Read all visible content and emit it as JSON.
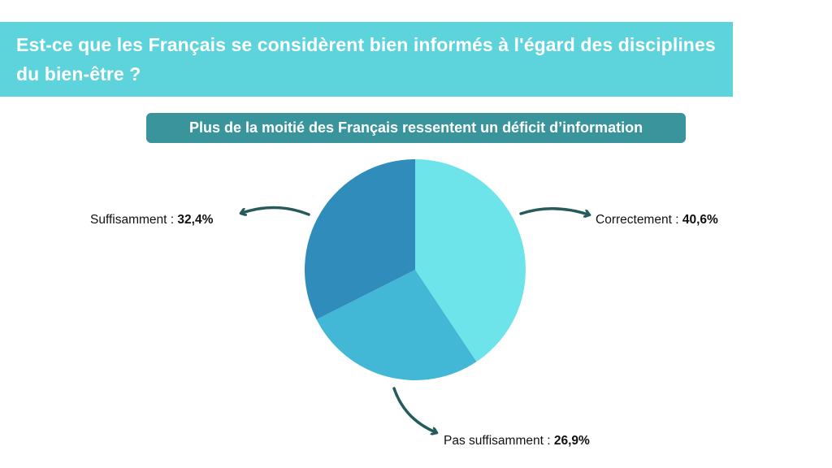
{
  "header": {
    "title": "Est-ce que les Français se considèrent bien informés à l'égard des disciplines du bien-être ?"
  },
  "subtitle": "Plus de la moitié des Français ressentent un déficit d’information",
  "chart_data": {
    "type": "pie",
    "categories": [
      "Correctement",
      "Pas suffisamment",
      "Suffisamment"
    ],
    "values": [
      40.6,
      26.9,
      32.4
    ],
    "labels": [
      {
        "name": "Correctement :",
        "value": "40,6%"
      },
      {
        "name": "Pas suffisamment :",
        "value": "26,9%"
      },
      {
        "name": "Suffisamment :",
        "value": "32,4%"
      }
    ],
    "colors": [
      "#6ce4ea",
      "#43b8d6",
      "#2f8cbb"
    ],
    "start": "12 o'clock, clockwise"
  },
  "colors": {
    "banner": "#5dd3dc",
    "pill": "#3a949c",
    "arrow": "#265a5c"
  }
}
